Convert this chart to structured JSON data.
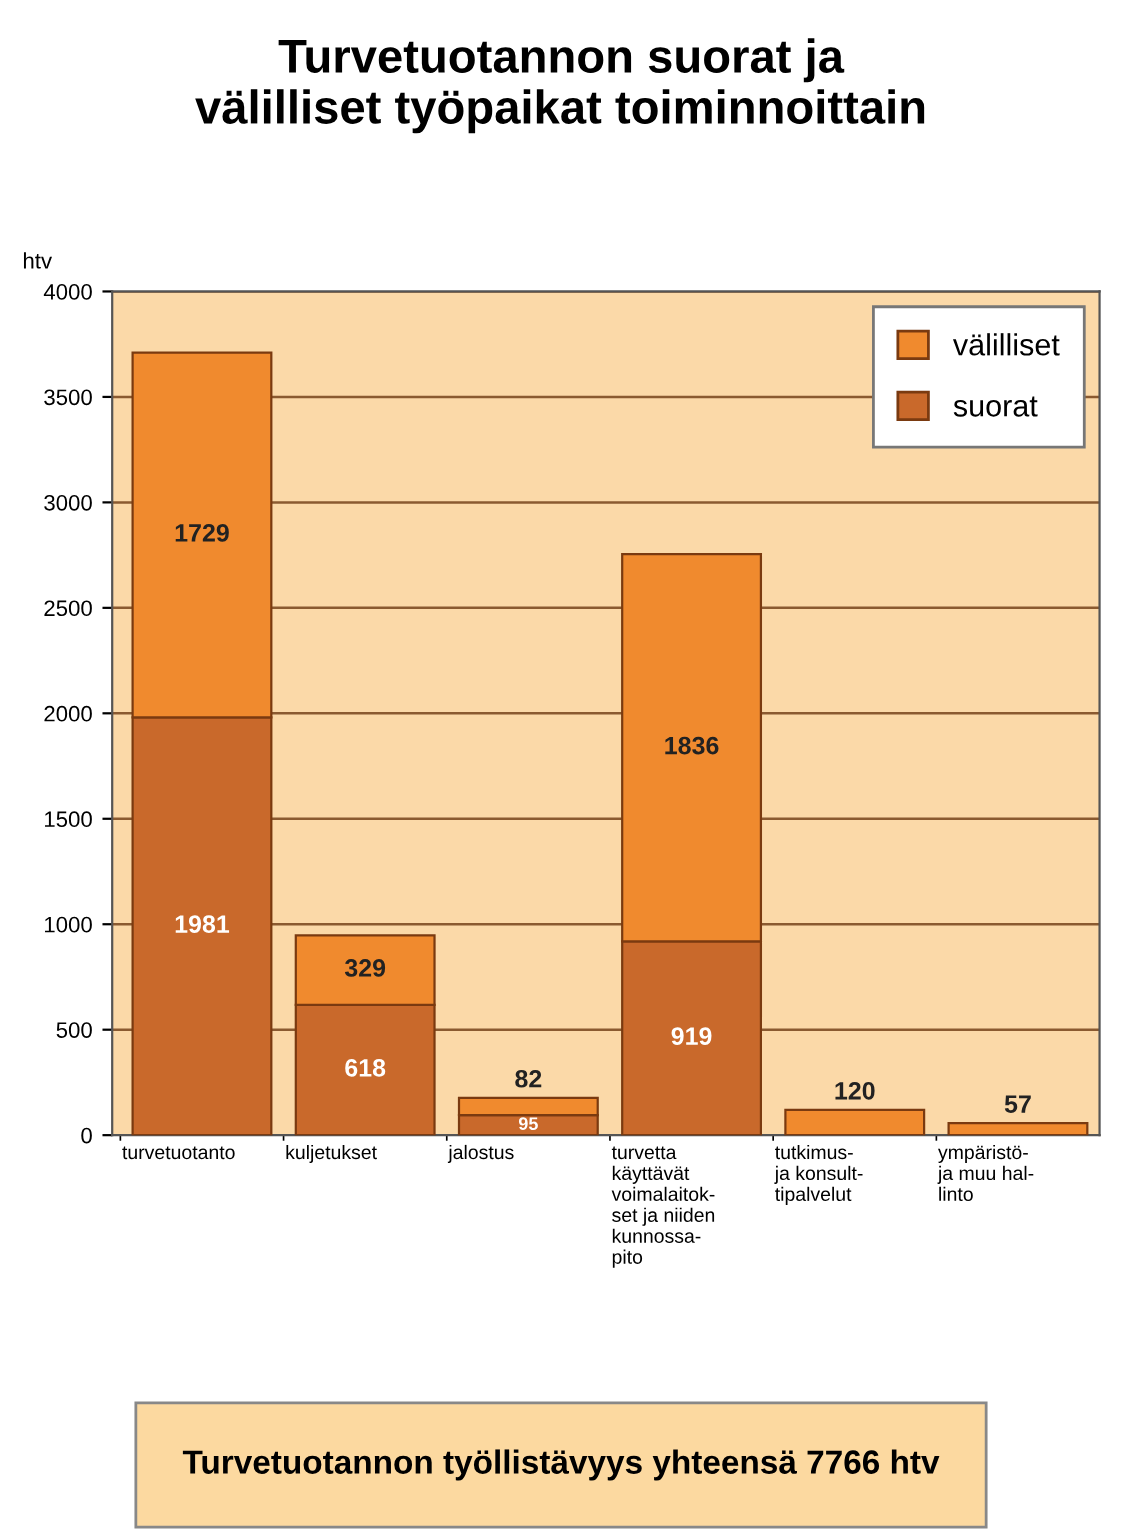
{
  "chart_data": {
    "type": "bar",
    "title": "Turvetuotannon suorat ja\nvälilliset työpaikat toiminnoittain",
    "ylabel": "htv",
    "categories": [
      "turvetuotanto",
      "kuljetukset",
      "jalostus",
      "turvetta\nkäyttävät\nvoimalaitok-\nset ja niiden\nkunnossa-\npito",
      "tutkimus-\nja konsult-\ntipalvelut",
      "ympäristö-\nja muu hal-\nlinto"
    ],
    "series": [
      {
        "name": "suorat",
        "color": "#c9692b",
        "values": [
          1981,
          618,
          95,
          919,
          null,
          null
        ]
      },
      {
        "name": "välilliset",
        "color": "#f08a2e",
        "values": [
          1729,
          329,
          82,
          1836,
          120,
          57
        ]
      }
    ],
    "stacked": true,
    "data_labels": true,
    "ylim": [
      0,
      4000
    ],
    "yticks": [
      0,
      500,
      1000,
      1500,
      2000,
      2500,
      3000,
      3500,
      4000
    ],
    "grid": "y",
    "legend": "top right",
    "annotations": [
      "Turvetuotannon työllistävyys yhteensä 7766 htv"
    ]
  }
}
